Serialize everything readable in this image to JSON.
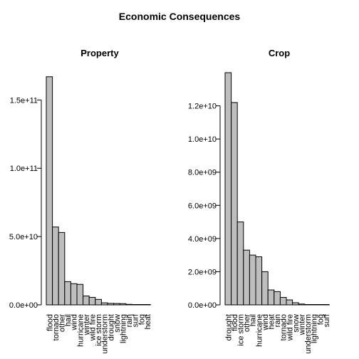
{
  "title": "Economic Consequences",
  "colors": {
    "bar_fill": "#bebebe",
    "bar_stroke": "#000000"
  },
  "chart_data": [
    {
      "type": "bar",
      "title": "Property",
      "xlabel": "",
      "ylabel": "",
      "ylim": [
        0,
        170000000000
      ],
      "y_ticks": [
        0,
        50000000000,
        100000000000,
        150000000000
      ],
      "y_tick_labels": [
        "0.0e+00",
        "5.0e+10",
        "1.0e+11",
        "1.5e+11"
      ],
      "categories": [
        "flood",
        "tornado",
        "other",
        "hail",
        "wind",
        "hurricane",
        "winter",
        "wild fire",
        "ice storm",
        "understorm",
        "drought",
        "snow",
        "lightning",
        "rain",
        "surf",
        "fog",
        "heat"
      ],
      "values": [
        167000000000,
        57000000000,
        53000000000,
        17000000000,
        15500000000,
        15000000000,
        6500000000,
        5500000000,
        4000000000,
        1500000000,
        1100000000,
        1000000000,
        900000000,
        400000000,
        150000000,
        50000000,
        20000000
      ]
    },
    {
      "type": "bar",
      "title": "Crop",
      "xlabel": "",
      "ylabel": "",
      "ylim": [
        0,
        14000000000
      ],
      "y_ticks": [
        0,
        2000000000,
        4000000000,
        6000000000,
        8000000000,
        10000000000,
        12000000000
      ],
      "y_tick_labels": [
        "0.0e+00",
        "2.0e+09",
        "4.0e+09",
        "6.0e+09",
        "8.0e+09",
        "1.0e+10",
        "1.2e+10"
      ],
      "categories": [
        "drought",
        "flood",
        "ice storm",
        "other",
        "hail",
        "hurricane",
        "wind",
        "heat",
        "rain",
        "tornado",
        "wild fire",
        "snow",
        "winter",
        "understorm",
        "lightning",
        "fog",
        "surf"
      ],
      "values": [
        14000000000,
        12200000000,
        5000000000,
        3300000000,
        3000000000,
        2900000000,
        2000000000,
        900000000,
        800000000,
        450000000,
        300000000,
        130000000,
        50000000,
        10000000,
        5000000,
        2000000,
        1000000
      ]
    }
  ]
}
